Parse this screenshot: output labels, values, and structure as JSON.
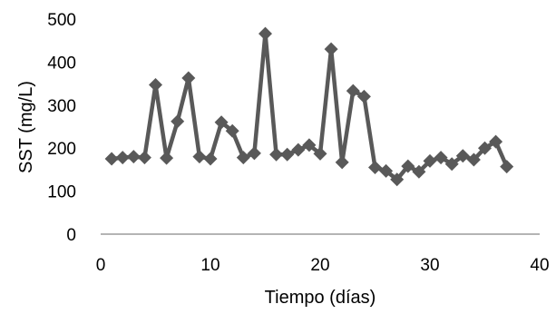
{
  "chart_data": {
    "type": "line",
    "title": "",
    "xlabel": "Tiempo (días)",
    "ylabel": "SST (mg/L)",
    "xlim": [
      0,
      40
    ],
    "ylim": [
      0,
      500
    ],
    "x_ticks": [
      0,
      10,
      20,
      30,
      40
    ],
    "y_ticks": [
      0,
      100,
      200,
      300,
      400,
      500
    ],
    "grid": false,
    "legend": "none",
    "marker": "diamond",
    "series": [
      {
        "color": "#595959",
        "x": [
          1,
          2,
          3,
          4,
          5,
          6,
          7,
          8,
          9,
          10,
          11,
          12,
          13,
          14,
          15,
          16,
          17,
          18,
          19,
          20,
          21,
          22,
          23,
          24,
          25,
          26,
          27,
          28,
          29,
          30,
          31,
          32,
          33,
          34,
          35,
          36,
          37
        ],
        "y": [
          175,
          178,
          180,
          178,
          347,
          177,
          262,
          363,
          180,
          175,
          260,
          240,
          178,
          188,
          466,
          185,
          185,
          196,
          207,
          187,
          430,
          167,
          333,
          320,
          155,
          147,
          127,
          158,
          145,
          170,
          178,
          163,
          182,
          173,
          200,
          215,
          157
        ]
      }
    ]
  }
}
